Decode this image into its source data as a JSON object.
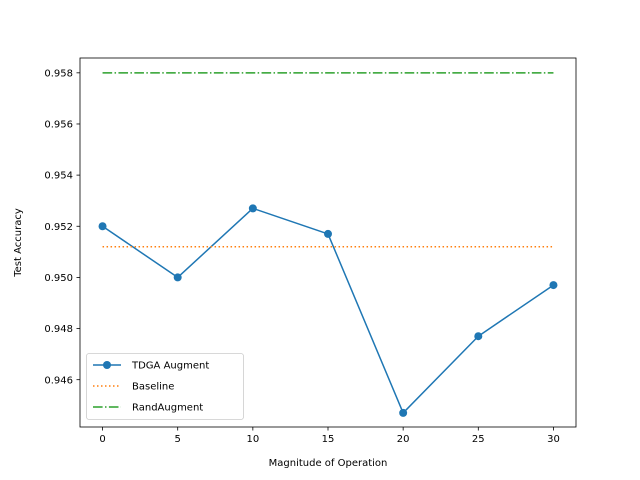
{
  "chart_data": {
    "type": "line",
    "title": "",
    "xlabel": "Magnitude of Operation",
    "ylabel": "Test Accuracy",
    "xlim": [
      -1.5,
      31.5
    ],
    "ylim": [
      0.94415,
      0.95858
    ],
    "x_ticks": [
      0,
      5,
      10,
      15,
      20,
      25,
      30
    ],
    "x_tick_labels": [
      "0",
      "5",
      "10",
      "15",
      "20",
      "25",
      "30"
    ],
    "y_ticks": [
      0.946,
      0.948,
      0.95,
      0.952,
      0.954,
      0.956,
      0.958
    ],
    "y_tick_labels": [
      "0.946",
      "0.948",
      "0.950",
      "0.952",
      "0.954",
      "0.956",
      "0.958"
    ],
    "grid": false,
    "legend_position": "lower-left",
    "series": [
      {
        "name": "TDGA Augment",
        "style": "solid",
        "marker": "circle",
        "color": "#1f77b4",
        "x": [
          0,
          5,
          10,
          15,
          20,
          25,
          30
        ],
        "y": [
          0.952,
          0.95,
          0.9527,
          0.9517,
          0.9447,
          0.9477,
          0.9497
        ]
      },
      {
        "name": "Baseline",
        "style": "dotted",
        "marker": "none",
        "color": "#ff7f0e",
        "x": [
          0,
          30
        ],
        "y": [
          0.9512,
          0.9512
        ]
      },
      {
        "name": "RandAugment",
        "style": "dashdot",
        "marker": "none",
        "color": "#2ca02c",
        "x": [
          0,
          30
        ],
        "y": [
          0.958,
          0.958
        ]
      }
    ]
  }
}
